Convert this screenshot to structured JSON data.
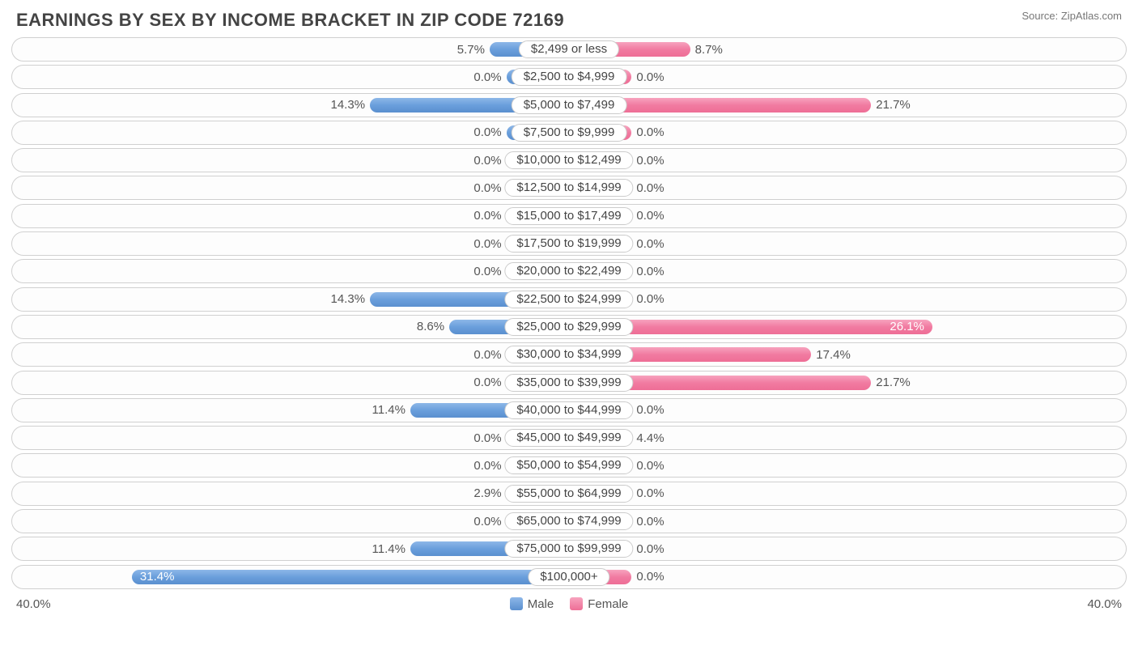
{
  "title": "EARNINGS BY SEX BY INCOME BRACKET IN ZIP CODE 72169",
  "source": "Source: ZipAtlas.com",
  "chart": {
    "type": "diverging-bar",
    "max_pct": 40.0,
    "min_bar_pct": 4.5,
    "axis_left": "40.0%",
    "axis_right": "40.0%",
    "legend": {
      "male": "Male",
      "female": "Female"
    },
    "colors": {
      "male_bar": "#6a9fdc",
      "female_bar": "#f17ba1",
      "row_border": "#d0d0d0",
      "text": "#555555",
      "background": "#ffffff"
    },
    "rows": [
      {
        "label": "$2,499 or less",
        "male": 5.7,
        "female": 8.7
      },
      {
        "label": "$2,500 to $4,999",
        "male": 0.0,
        "female": 0.0
      },
      {
        "label": "$5,000 to $7,499",
        "male": 14.3,
        "female": 21.7
      },
      {
        "label": "$7,500 to $9,999",
        "male": 0.0,
        "female": 0.0
      },
      {
        "label": "$10,000 to $12,499",
        "male": 0.0,
        "female": 0.0
      },
      {
        "label": "$12,500 to $14,999",
        "male": 0.0,
        "female": 0.0
      },
      {
        "label": "$15,000 to $17,499",
        "male": 0.0,
        "female": 0.0
      },
      {
        "label": "$17,500 to $19,999",
        "male": 0.0,
        "female": 0.0
      },
      {
        "label": "$20,000 to $22,499",
        "male": 0.0,
        "female": 0.0
      },
      {
        "label": "$22,500 to $24,999",
        "male": 14.3,
        "female": 0.0
      },
      {
        "label": "$25,000 to $29,999",
        "male": 8.6,
        "female": 26.1
      },
      {
        "label": "$30,000 to $34,999",
        "male": 0.0,
        "female": 17.4
      },
      {
        "label": "$35,000 to $39,999",
        "male": 0.0,
        "female": 21.7
      },
      {
        "label": "$40,000 to $44,999",
        "male": 11.4,
        "female": 0.0
      },
      {
        "label": "$45,000 to $49,999",
        "male": 0.0,
        "female": 4.4
      },
      {
        "label": "$50,000 to $54,999",
        "male": 0.0,
        "female": 0.0
      },
      {
        "label": "$55,000 to $64,999",
        "male": 2.9,
        "female": 0.0
      },
      {
        "label": "$65,000 to $74,999",
        "male": 0.0,
        "female": 0.0
      },
      {
        "label": "$75,000 to $99,999",
        "male": 11.4,
        "female": 0.0
      },
      {
        "label": "$100,000+",
        "male": 31.4,
        "female": 0.0
      }
    ]
  }
}
